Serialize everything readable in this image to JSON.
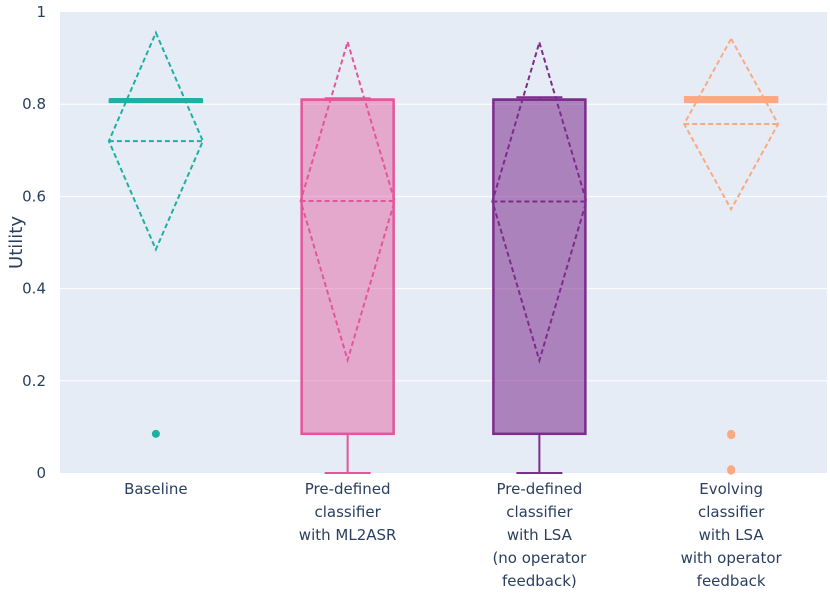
{
  "chart_data": {
    "type": "box",
    "title": "",
    "xlabel": "",
    "ylabel": "Utility",
    "ylim": [
      0,
      1
    ],
    "yticks": [
      0,
      0.2,
      0.4,
      0.6,
      0.8,
      1
    ],
    "ytick_labels": [
      "0",
      "0.2",
      "0.4",
      "0.6",
      "0.8",
      "1"
    ],
    "grid": true,
    "boxmean": "sd",
    "series": [
      {
        "name": "Baseline",
        "label_lines": [
          "Baseline"
        ],
        "color": "#1eb0a3",
        "fill": "none",
        "q1": 0.805,
        "median": 0.808,
        "q3": 0.81,
        "lowerfence": 0.805,
        "upperfence": 0.81,
        "mean": 0.72,
        "sd": 0.235,
        "outliers": [
          0.085
        ]
      },
      {
        "name": "Pre-defined classifier with ML2ASR",
        "label_lines": [
          "Pre-defined",
          "classifier",
          "with ML2ASR"
        ],
        "color": "#e3569b",
        "fill": "rgba(227,86,155,0.45)",
        "q1": 0.085,
        "median": 0.81,
        "q3": 0.81,
        "lowerfence": 0.0,
        "upperfence": 0.813,
        "mean": 0.59,
        "sd": 0.345,
        "outliers": []
      },
      {
        "name": "Pre-defined classifier with LSA (no operator feedback)",
        "label_lines": [
          "Pre-defined",
          "classifier",
          "with LSA",
          "(no operator",
          "feedback)"
        ],
        "color": "#7d2c8c",
        "fill": "rgba(125,44,140,0.55)",
        "q1": 0.085,
        "median": 0.81,
        "q3": 0.81,
        "lowerfence": 0.0,
        "upperfence": 0.815,
        "mean": 0.589,
        "sd": 0.345,
        "outliers": []
      },
      {
        "name": "Evolving classifier with LSA with operator feedback",
        "label_lines": [
          "Evolving",
          "classifier",
          "with LSA",
          "with operator",
          "feedback"
        ],
        "color": "#fca982",
        "fill": "none",
        "q1": 0.805,
        "median": 0.81,
        "q3": 0.815,
        "lowerfence": 0.805,
        "upperfence": 0.815,
        "mean": 0.757,
        "sd": 0.185,
        "outliers": [
          0.085,
          0.082,
          0.008,
          0.005
        ]
      }
    ]
  }
}
